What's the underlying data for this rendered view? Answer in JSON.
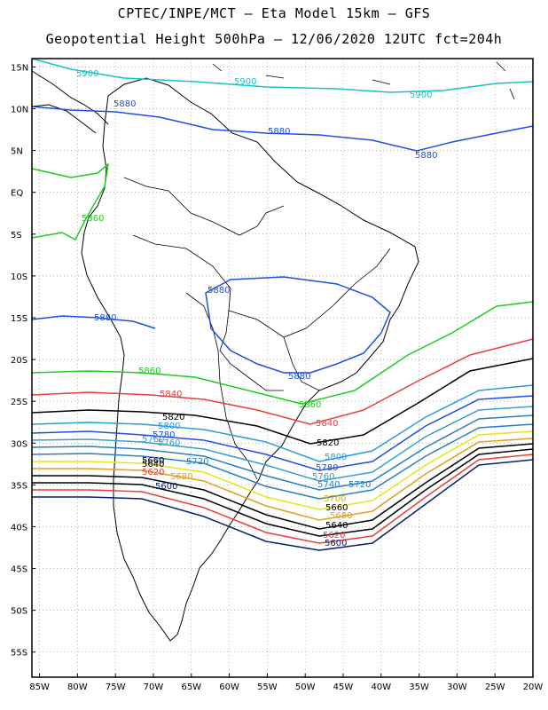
{
  "header": {
    "line1": "CPTEC/INPE/MCT –  Eta Model 15km – GFS",
    "line2": "Geopotential Height 500hPa – 12/06/2020 12UTC fct=204h"
  },
  "axes": {
    "lat_labels": [
      "15N",
      "10N",
      "5N",
      "EQ",
      "5S",
      "10S",
      "15S",
      "20S",
      "25S",
      "30S",
      "35S",
      "40S",
      "45S",
      "50S",
      "55S"
    ],
    "lat_values": [
      15,
      10,
      5,
      0,
      -5,
      -10,
      -15,
      -20,
      -25,
      -30,
      -35,
      -40,
      -45,
      -50,
      -55
    ],
    "lon_labels": [
      "85W",
      "80W",
      "75W",
      "70W",
      "65W",
      "60W",
      "55W",
      "50W",
      "45W",
      "40W",
      "35W",
      "30W",
      "25W",
      "20W"
    ],
    "lon_values": [
      -85,
      -80,
      -75,
      -70,
      -65,
      -60,
      -55,
      -50,
      -45,
      -40,
      -35,
      -30,
      -25,
      -20
    ],
    "lon_range": [
      -86,
      -20
    ],
    "lat_range": [
      -58,
      16
    ],
    "grid": "dotted"
  },
  "contours": [
    {
      "level": "5900",
      "color": "#19c3c3"
    },
    {
      "level": "5880",
      "color": "#1f4fe0"
    },
    {
      "level": "5860",
      "color": "#1fcc1f"
    },
    {
      "level": "5840",
      "color": "#e8403a"
    },
    {
      "level": "5820",
      "color": "#000000"
    },
    {
      "level": "5800",
      "color": "#2a9fd6"
    },
    {
      "level": "5780",
      "color": "#1f4fe0"
    },
    {
      "level": "5760",
      "color": "#3aa0c8"
    },
    {
      "level": "5740",
      "color": "#2a7fbf"
    },
    {
      "level": "5720",
      "color": "#2a7fbf"
    },
    {
      "level": "5700",
      "color": "#e6e61a"
    },
    {
      "level": "5680",
      "color": "#e0a020"
    },
    {
      "level": "5660",
      "color": "#000000"
    },
    {
      "level": "5640",
      "color": "#000000"
    },
    {
      "level": "5620",
      "color": "#e8403a"
    },
    {
      "level": "5600",
      "color": "#0a1f6e"
    }
  ]
}
